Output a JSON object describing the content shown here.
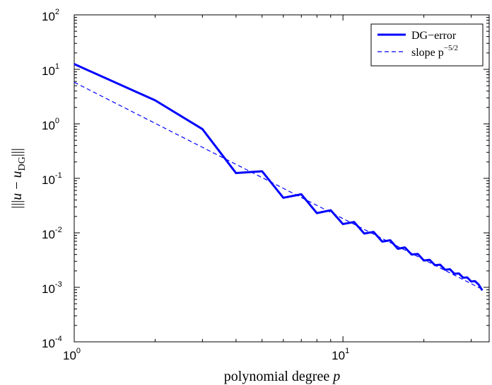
{
  "chart_data": {
    "type": "line",
    "title": "",
    "xlabel": "polynomial degree p",
    "ylabel": "|||u − u_DG|||",
    "x_scale": "log",
    "y_scale": "log",
    "xlim": [
      1,
      35
    ],
    "ylim": [
      0.0001,
      100
    ],
    "x_ticks": [
      {
        "value": 1,
        "base": "10",
        "exp": "0"
      },
      {
        "value": 10,
        "base": "10",
        "exp": "1"
      }
    ],
    "y_ticks": [
      {
        "value": 100,
        "base": "10",
        "exp": "2"
      },
      {
        "value": 10,
        "base": "10",
        "exp": "1"
      },
      {
        "value": 1,
        "base": "10",
        "exp": "0"
      },
      {
        "value": 0.1,
        "base": "10",
        "exp": "-1"
      },
      {
        "value": 0.01,
        "base": "10",
        "exp": "-2"
      },
      {
        "value": 0.001,
        "base": "10",
        "exp": "-3"
      },
      {
        "value": 0.0001,
        "base": "10",
        "exp": "-4"
      }
    ],
    "grid": false,
    "legend_position": "top-right",
    "series": [
      {
        "name": "DG−error",
        "style": "solid",
        "color": "#0000ff",
        "x": [
          1,
          2,
          3,
          4,
          5,
          6,
          7,
          8,
          9,
          10,
          11,
          12,
          13,
          14,
          15,
          16,
          17,
          18,
          19,
          20,
          21,
          22,
          23,
          24,
          25,
          26,
          27,
          28,
          29,
          30,
          31,
          32,
          33
        ],
        "y": [
          12.5,
          2.7,
          0.8,
          0.125,
          0.135,
          0.044,
          0.051,
          0.023,
          0.026,
          0.0145,
          0.0158,
          0.0097,
          0.0104,
          0.0069,
          0.0073,
          0.0051,
          0.0054,
          0.004,
          0.0041,
          0.0031,
          0.0032,
          0.00255,
          0.0026,
          0.0021,
          0.00215,
          0.00177,
          0.0018,
          0.0015,
          0.00152,
          0.00128,
          0.0013,
          0.00112,
          0.00088
        ]
      },
      {
        "name": "slope p",
        "name_superscript": "−5/2",
        "style": "dashed",
        "color": "#0000ff",
        "x": [
          1,
          33
        ],
        "y": [
          5.8,
          0.00092
        ]
      }
    ]
  }
}
